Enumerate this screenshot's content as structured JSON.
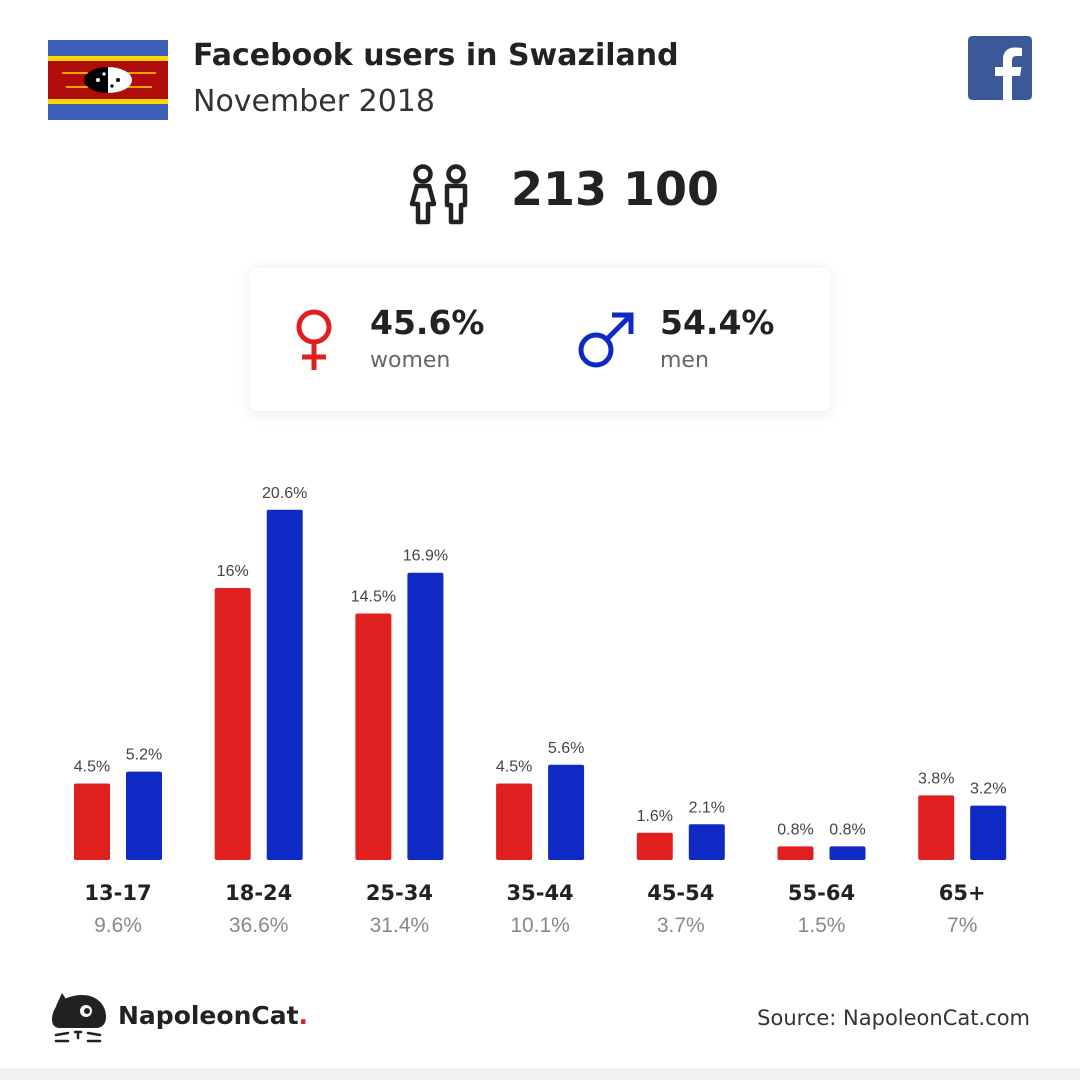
{
  "header": {
    "title": "Facebook users in Swaziland",
    "subtitle": "November 2018"
  },
  "icons": {
    "flag": "swaziland-flag-icon",
    "social": "facebook-icon",
    "users": "people-icon",
    "female": "female-symbol-icon",
    "male": "male-symbol-icon",
    "logo": "napoleoncat-logo-icon"
  },
  "total_users": "213 100",
  "gender": {
    "women": {
      "pct": "45.6%",
      "label": "women"
    },
    "men": {
      "pct": "54.4%",
      "label": "men"
    }
  },
  "colors": {
    "women": "#e0201f",
    "men": "#0f2ac4",
    "facebook": "#3b5998"
  },
  "chart_data": {
    "type": "bar",
    "categories": [
      "13-17",
      "18-24",
      "25-34",
      "35-44",
      "45-54",
      "55-64",
      "65+"
    ],
    "totals": [
      "9.6%",
      "36.6%",
      "31.4%",
      "10.1%",
      "3.7%",
      "1.5%",
      "7%"
    ],
    "series": [
      {
        "key": "women",
        "values": [
          4.5,
          16,
          14.5,
          4.5,
          1.6,
          0.8,
          3.8
        ],
        "labels": [
          "4.5%",
          "16%",
          "14.5%",
          "4.5%",
          "1.6%",
          "0.8%",
          "3.8%"
        ]
      },
      {
        "key": "men",
        "values": [
          5.2,
          20.6,
          16.9,
          5.6,
          2.1,
          0.8,
          3.2
        ],
        "labels": [
          "5.2%",
          "20.6%",
          "16.9%",
          "5.6%",
          "2.1%",
          "0.8%",
          "3.2%"
        ]
      }
    ]
  },
  "footer": {
    "brand": "NapoleonCat",
    "brand_dot": ".",
    "source": "Source: NapoleonCat.com"
  }
}
